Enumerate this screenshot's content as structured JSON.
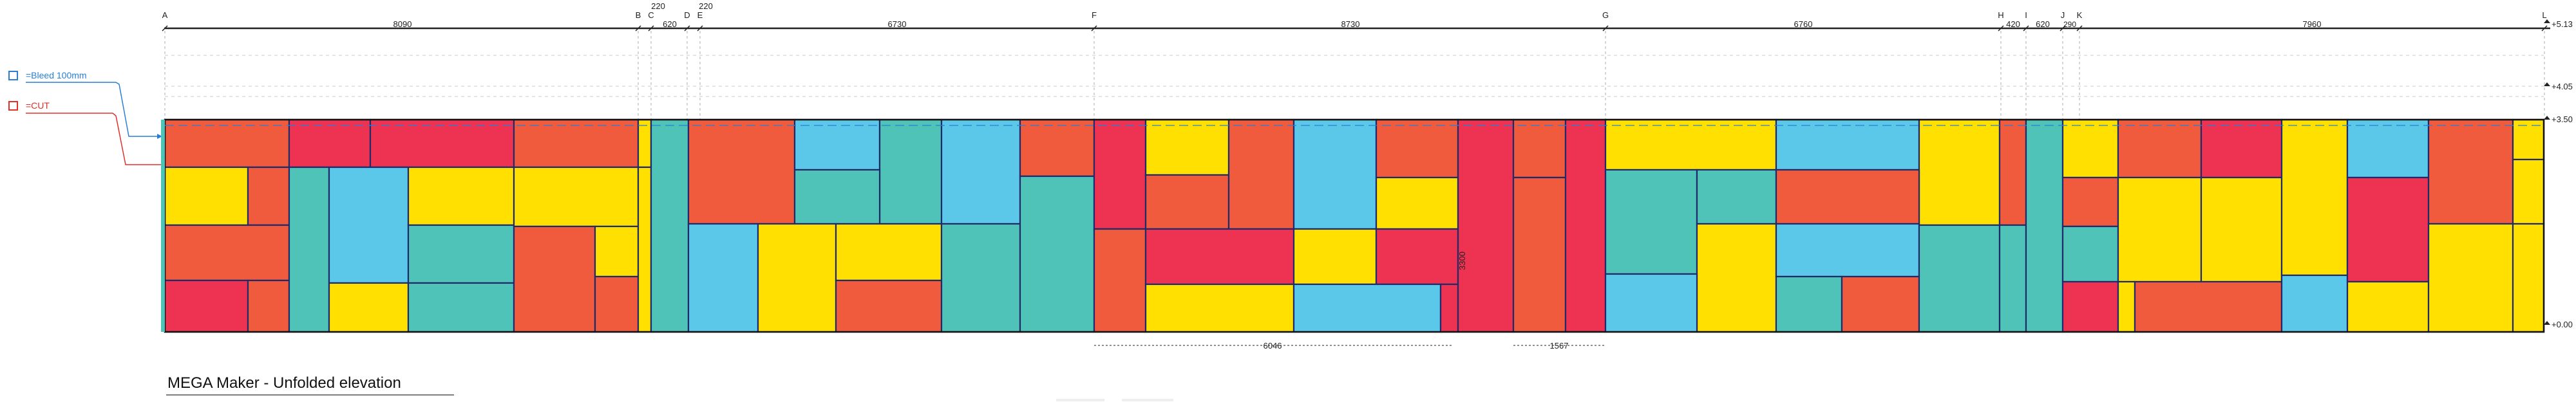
{
  "grid": {
    "labels": [
      "A",
      "B",
      "C",
      "D",
      "E",
      "F",
      "G",
      "H",
      "I",
      "J",
      "K",
      "L"
    ],
    "dims": [
      "8090",
      "220",
      "620",
      "220",
      "6730",
      "8730",
      "6760",
      "420",
      "620",
      "290",
      "7960"
    ]
  },
  "levels": [
    "+5.13",
    "+4.05",
    "+3.50",
    "+0.00"
  ],
  "legend": [
    {
      "label": "=Bleed 100mm",
      "color": "#2a7fd4"
    },
    {
      "label": "=CUT",
      "color": "#e0302a"
    }
  ],
  "bottom_dims": [
    "6046",
    "1567"
  ],
  "height_dim": "3300",
  "title": "MEGA Maker - Unfolded elevation",
  "colors": {
    "red": "#ee3352",
    "orange": "#f05b3e",
    "yellow": "#ffe000",
    "blue": "#5bc8ea",
    "teal": "#4fc3b7",
    "navy": "#1f2a6b",
    "bleed": "#2a7fd4",
    "cut": "#e0302a"
  }
}
